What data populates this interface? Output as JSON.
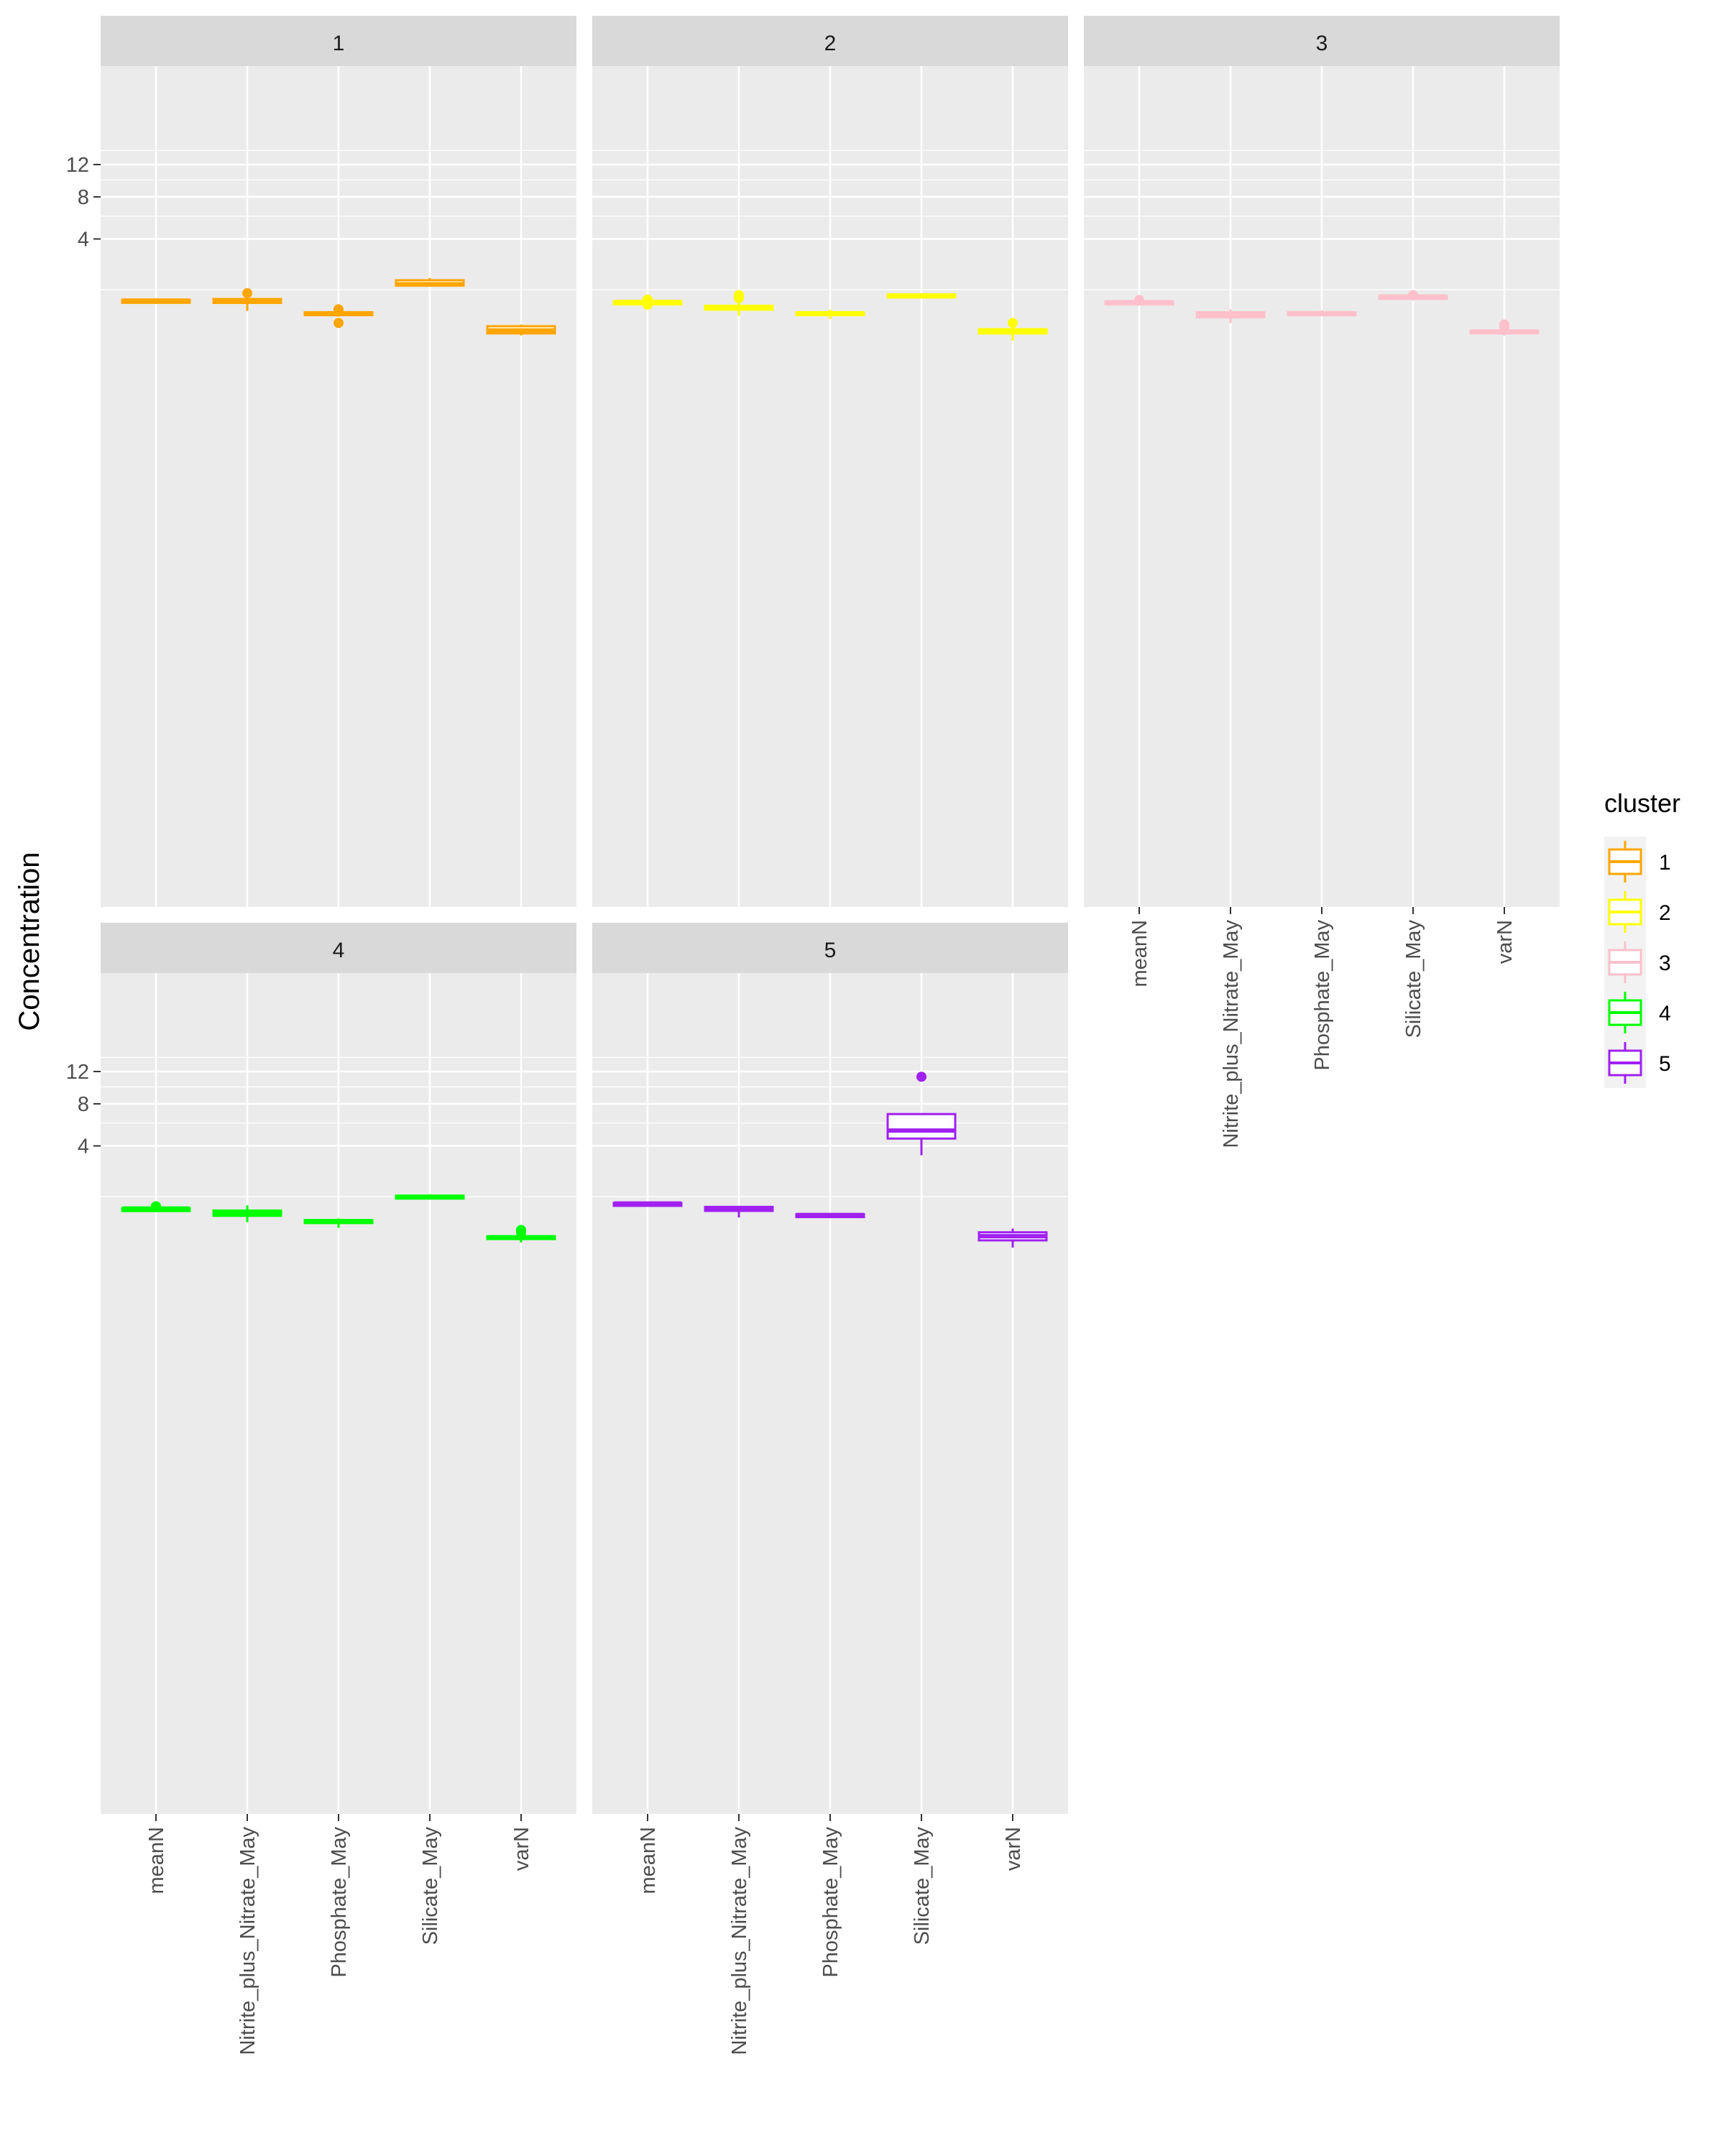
{
  "chart_data": {
    "type": "box",
    "facet_variable": "cluster",
    "ylabel": "Concentration",
    "xlabel": "",
    "y_scale": "sqrt",
    "y_ticks": [
      4,
      8,
      12
    ],
    "y_tick_labels": [
      "4",
      "8",
      "12"
    ],
    "categories": [
      "meanN",
      "Nitrite_plus_Nitrate_May",
      "Phosphate_May",
      "Silicate_May",
      "varN"
    ],
    "grid": true,
    "legend": {
      "title": "cluster",
      "position": "right",
      "entries": [
        {
          "label": "1",
          "color": "#FFA500"
        },
        {
          "label": "2",
          "color": "#FFFF00"
        },
        {
          "label": "3",
          "color": "#FFC0CB"
        },
        {
          "label": "4",
          "color": "#00FF00"
        },
        {
          "label": "5",
          "color": "#A020F0"
        }
      ]
    },
    "panels": [
      {
        "label": "1",
        "color": "#FFA500",
        "boxes": [
          {
            "category": "meanN",
            "whisker_low": 0.56,
            "q1": 0.6,
            "median": 0.62,
            "q3": 0.64,
            "whisker_high": 0.69,
            "outliers": []
          },
          {
            "category": "Nitrite_plus_Nitrate_May",
            "whisker_low": 0.34,
            "q1": 0.55,
            "median": 0.61,
            "q3": 0.67,
            "whisker_high": 0.71,
            "outliers": [
              0.87
            ]
          },
          {
            "category": "Phosphate_May",
            "whisker_low": 0.22,
            "q1": 0.27,
            "median": 0.29,
            "q3": 0.31,
            "whisker_high": 0.31,
            "outliers": [
              0.37,
              0.38,
              0.12
            ]
          },
          {
            "category": "Silicate_May",
            "whisker_low": 1.12,
            "q1": 1.17,
            "median": 1.23,
            "q3": 1.41,
            "whisker_high": 1.52,
            "outliers": []
          },
          {
            "category": "varN",
            "whisker_low": 0.01,
            "q1": 0.02,
            "median": 0.04,
            "q3": 0.08,
            "whisker_high": 0.1,
            "outliers": []
          }
        ]
      },
      {
        "label": "2",
        "color": "#FFFF00",
        "boxes": [
          {
            "category": "meanN",
            "whisker_low": 0.54,
            "q1": 0.56,
            "median": 0.58,
            "q3": 0.59,
            "whisker_high": 0.6,
            "outliers": [
              0.65,
              0.5,
              0.51
            ]
          },
          {
            "category": "Nitrite_plus_Nitrate_May",
            "whisker_low": 0.24,
            "q1": 0.37,
            "median": 0.42,
            "q3": 0.47,
            "whisker_high": 0.55,
            "outliers": [
              0.7,
              0.73,
              0.78,
              0.8
            ]
          },
          {
            "category": "Phosphate_May",
            "whisker_low": 0.18,
            "q1": 0.25,
            "median": 0.29,
            "q3": 0.31,
            "whisker_high": 0.37,
            "outliers": []
          },
          {
            "category": "Silicate_May",
            "whisker_low": 0.74,
            "q1": 0.77,
            "median": 0.79,
            "q3": 0.82,
            "whisker_high": 0.84,
            "outliers": []
          },
          {
            "category": "varN",
            "whisker_low": 0.0,
            "q1": 0.02,
            "median": 0.04,
            "q3": 0.05,
            "whisker_high": 0.12,
            "outliers": [
              0.12
            ]
          }
        ]
      },
      {
        "label": "3",
        "color": "#FFC0CB",
        "boxes": [
          {
            "category": "meanN",
            "whisker_low": 0.53,
            "q1": 0.56,
            "median": 0.57,
            "q3": 0.59,
            "whisker_high": 0.59,
            "outliers": [
              0.64
            ]
          },
          {
            "category": "Nitrite_plus_Nitrate_May",
            "whisker_low": 0.12,
            "q1": 0.21,
            "median": 0.27,
            "q3": 0.31,
            "whisker_high": 0.38,
            "outliers": []
          },
          {
            "category": "Phosphate_May",
            "whisker_low": 0.23,
            "q1": 0.26,
            "median": 0.29,
            "q3": 0.31,
            "whisker_high": 0.36,
            "outliers": []
          },
          {
            "category": "Silicate_May",
            "whisker_low": 0.72,
            "q1": 0.74,
            "median": 0.75,
            "q3": 0.77,
            "whisker_high": 0.79,
            "outliers": [
              0.79,
              0.8
            ]
          },
          {
            "category": "varN",
            "whisker_low": 0.01,
            "q1": 0.02,
            "median": 0.03,
            "q3": 0.04,
            "whisker_high": 0.05,
            "outliers": [
              0.07,
              0.1
            ]
          }
        ]
      },
      {
        "label": "4",
        "color": "#00FF00",
        "boxes": [
          {
            "category": "meanN",
            "whisker_low": 0.52,
            "q1": 0.56,
            "median": 0.59,
            "q3": 0.6,
            "whisker_high": 0.63,
            "outliers": [
              0.63,
              0.65,
              0.66
            ]
          },
          {
            "category": "Nitrite_plus_Nitrate_May",
            "whisker_low": 0.25,
            "q1": 0.39,
            "median": 0.46,
            "q3": 0.53,
            "whisker_high": 0.69,
            "outliers": []
          },
          {
            "category": "Phosphate_May",
            "whisker_low": 0.15,
            "q1": 0.25,
            "median": 0.27,
            "q3": 0.29,
            "whisker_high": 0.33,
            "outliers": []
          },
          {
            "category": "Silicate_May",
            "whisker_low": 0.94,
            "q1": 0.98,
            "median": 1.0,
            "q3": 1.04,
            "whisker_high": 1.1,
            "outliers": []
          },
          {
            "category": "varN",
            "whisker_low": 0.01,
            "q1": 0.03,
            "median": 0.04,
            "q3": 0.05,
            "whisker_high": 0.07,
            "outliers": [
              0.09,
              0.1,
              0.11,
              0.12
            ]
          }
        ]
      },
      {
        "label": "5",
        "color": "#A020F0",
        "boxes": [
          {
            "category": "meanN",
            "whisker_low": 0.68,
            "q1": 0.72,
            "median": 0.75,
            "q3": 0.77,
            "whisker_high": 0.8,
            "outliers": []
          },
          {
            "category": "Nitrite_plus_Nitrate_May",
            "whisker_low": 0.35,
            "q1": 0.52,
            "median": 0.59,
            "q3": 0.64,
            "whisker_high": 0.67,
            "outliers": []
          },
          {
            "category": "Phosphate_May",
            "whisker_low": 0.38,
            "q1": 0.39,
            "median": 0.41,
            "q3": 0.43,
            "whisker_high": 0.45,
            "outliers": []
          },
          {
            "category": "Silicate_May",
            "whisker_low": 3.3,
            "q1": 4.6,
            "median": 5.3,
            "q3": 6.9,
            "whisker_high": 6.9,
            "outliers": [
              11.3
            ]
          },
          {
            "category": "varN",
            "whisker_low": 0.0,
            "q1": 0.02,
            "median": 0.05,
            "q3": 0.09,
            "whisker_high": 0.14,
            "outliers": []
          }
        ]
      }
    ]
  }
}
